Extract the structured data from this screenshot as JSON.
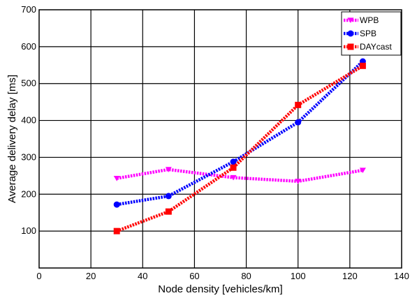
{
  "chart_data": {
    "type": "line",
    "xlabel": "Node density [vehicles/km]",
    "ylabel": "Average delivery delay [ms]",
    "xlim": [
      0,
      140
    ],
    "ylim": [
      0,
      700
    ],
    "xticks": [
      0,
      20,
      40,
      60,
      80,
      100,
      120,
      140
    ],
    "yticks": [
      100,
      200,
      300,
      400,
      500,
      600,
      700
    ],
    "grid": true,
    "legend_position": "top-right",
    "series": [
      {
        "name": "WPB",
        "color": "#ff00ff",
        "marker": "triangle-down",
        "x": [
          30,
          50,
          75,
          100,
          125
        ],
        "y": [
          243,
          267,
          245,
          235,
          265
        ]
      },
      {
        "name": "SPB",
        "color": "#0000ff",
        "marker": "circle",
        "x": [
          30,
          50,
          75,
          100,
          125
        ],
        "y": [
          172,
          195,
          288,
          395,
          560
        ]
      },
      {
        "name": "DAYcast",
        "color": "#ff0000",
        "marker": "square",
        "x": [
          30,
          50,
          75,
          100,
          125
        ],
        "y": [
          100,
          153,
          272,
          442,
          548
        ]
      }
    ]
  }
}
